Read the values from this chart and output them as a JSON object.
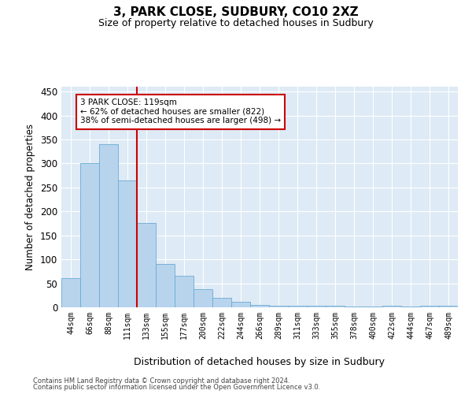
{
  "title": "3, PARK CLOSE, SUDBURY, CO10 2XZ",
  "subtitle": "Size of property relative to detached houses in Sudbury",
  "xlabel": "Distribution of detached houses by size in Sudbury",
  "ylabel": "Number of detached properties",
  "bar_color": "#b8d4ed",
  "bar_edge_color": "#6aaad4",
  "bg_color": "#deeaf5",
  "grid_color": "#ffffff",
  "vline_color": "#cc0000",
  "annotation_text": "3 PARK CLOSE: 119sqm\n← 62% of detached houses are smaller (822)\n38% of semi-detached houses are larger (498) →",
  "categories": [
    "44sqm",
    "66sqm",
    "88sqm",
    "111sqm",
    "133sqm",
    "155sqm",
    "177sqm",
    "200sqm",
    "222sqm",
    "244sqm",
    "266sqm",
    "289sqm",
    "311sqm",
    "333sqm",
    "355sqm",
    "378sqm",
    "400sqm",
    "422sqm",
    "444sqm",
    "467sqm",
    "489sqm"
  ],
  "values": [
    60,
    300,
    340,
    265,
    175,
    90,
    65,
    38,
    20,
    12,
    5,
    3,
    3,
    3,
    3,
    2,
    2,
    3,
    2,
    3,
    3
  ],
  "ylim": [
    0,
    460
  ],
  "yticks": [
    0,
    50,
    100,
    150,
    200,
    250,
    300,
    350,
    400,
    450
  ],
  "footnote1": "Contains HM Land Registry data © Crown copyright and database right 2024.",
  "footnote2": "Contains public sector information licensed under the Open Government Licence v3.0."
}
